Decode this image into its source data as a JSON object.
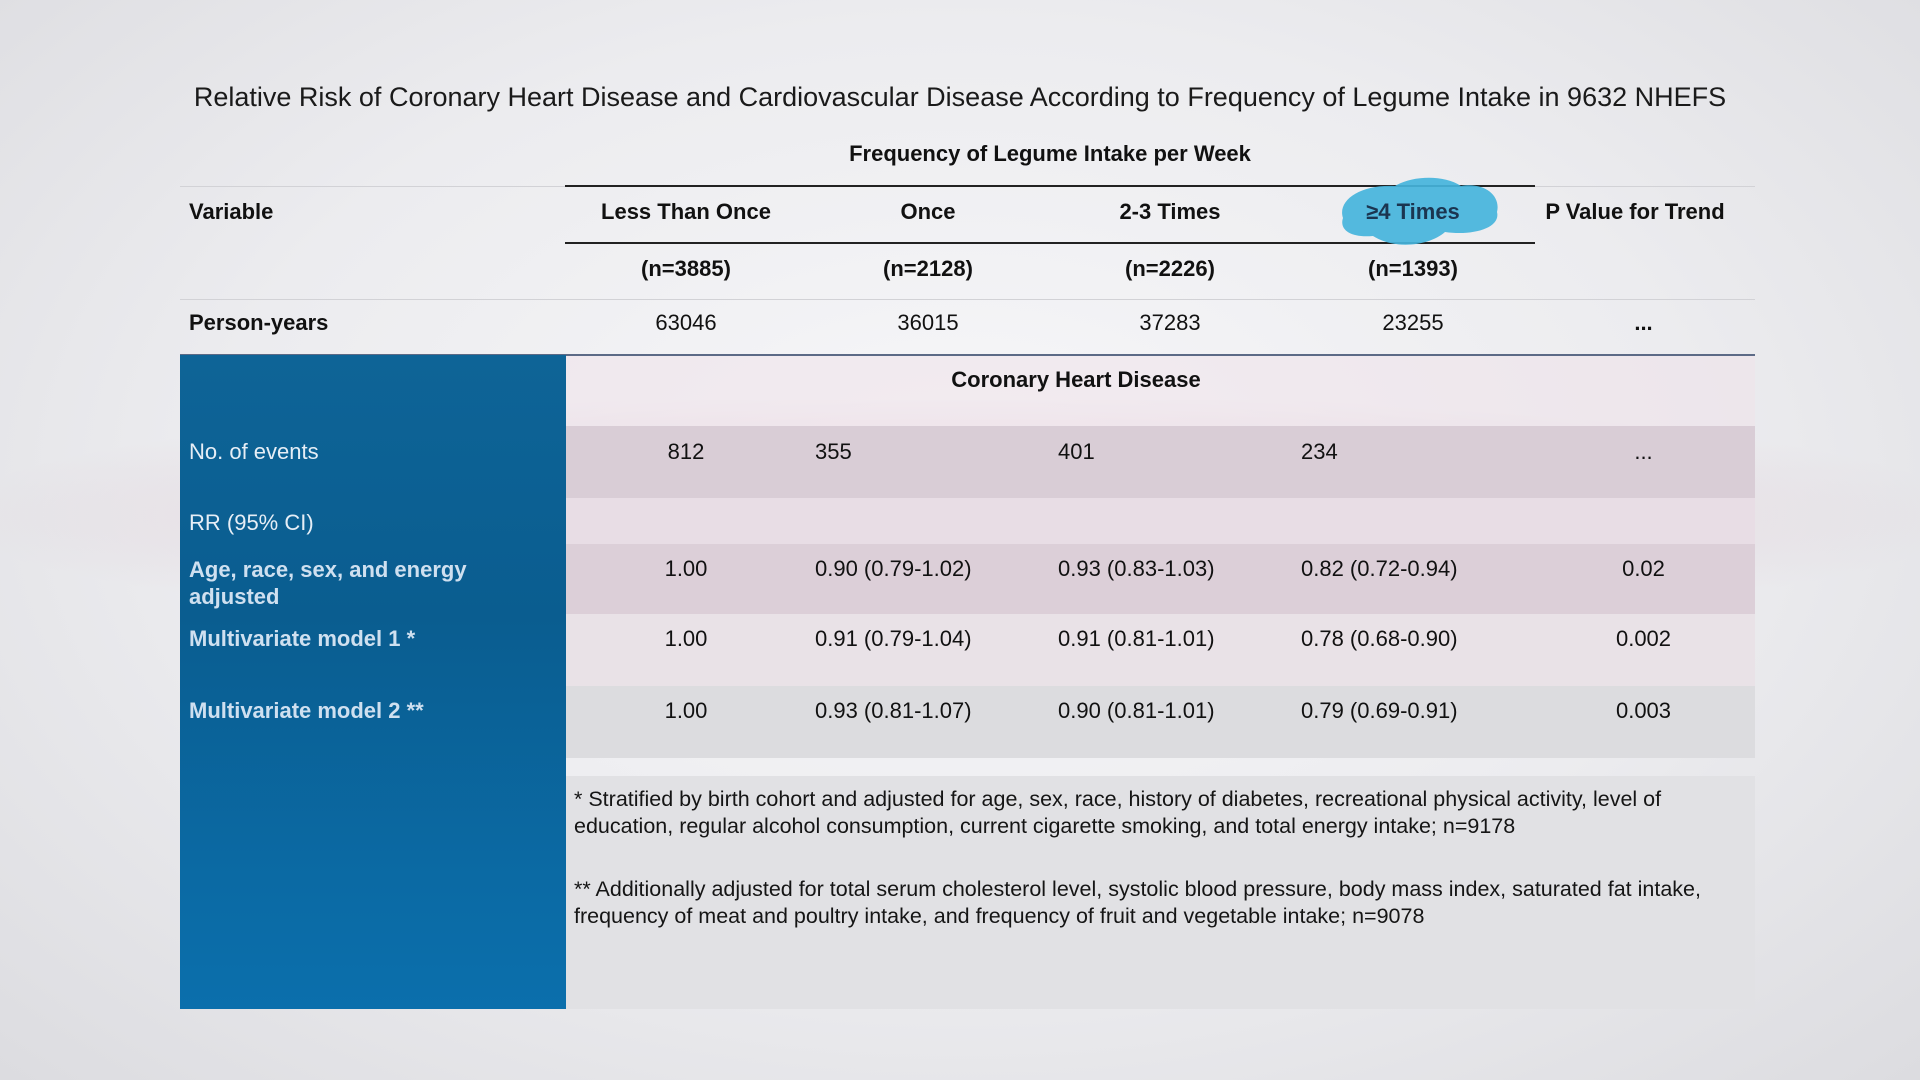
{
  "title": "Relative Risk of Coronary Heart Disease and Cardiovascular Disease According to Frequency of Legume Intake in 9632 NHEFS",
  "header": {
    "frequency_label": "Frequency of Legume Intake per Week",
    "variable_label": "Variable",
    "columns": [
      "Less Than Once",
      "Once",
      "2-3 Times",
      "≥4 Times"
    ],
    "p_trend_label": "P Value for Trend",
    "counts": [
      "(n=3885)",
      "(n=2128)",
      "(n=2226)",
      "(n=1393)"
    ]
  },
  "person_years": {
    "label": "Person-years",
    "values": [
      "63046",
      "36015",
      "37283",
      "23255"
    ],
    "p": "..."
  },
  "section_label": "Coronary Heart Disease",
  "events": {
    "label": "No. of events",
    "values": [
      "812",
      "355",
      "401",
      "234"
    ],
    "p": "..."
  },
  "rr_label": "RR (95% CI)",
  "models": [
    {
      "label_line1": "Age, race, sex, and energy",
      "label_line2": "adjusted",
      "values": [
        "1.00",
        "0.90 (0.79-1.02)",
        "0.93 (0.83-1.03)",
        "0.82 (0.72-0.94)"
      ],
      "p": "0.02"
    },
    {
      "label_line1": "Multivariate model 1 *",
      "values": [
        "1.00",
        "0.91 (0.79-1.04)",
        "0.91 (0.81-1.01)",
        "0.78 (0.68-0.90)"
      ],
      "p": "0.002"
    },
    {
      "label_line1": "Multivariate model 2 **",
      "values": [
        "1.00",
        "0.93 (0.81-1.07)",
        "0.90 (0.81-1.01)",
        "0.79 (0.69-0.91)"
      ],
      "p": "0.003"
    }
  ],
  "footnotes": [
    "* Stratified by birth cohort and adjusted for age, sex, race, history of diabetes, recreational physical activity, level of education, regular alcohol consumption, current cigarette smoking, and total energy intake; n=9178",
    "** Additionally adjusted for total serum cholesterol level, systolic blood pressure, body mass index, saturated fat intake, frequency of meat and poultry intake, and frequency of fruit and vegetable intake; n=9078"
  ],
  "colors": {
    "blue_column": "#0b639a",
    "highlight": "#45b4dc",
    "row_shade": "#d9cdd6"
  }
}
